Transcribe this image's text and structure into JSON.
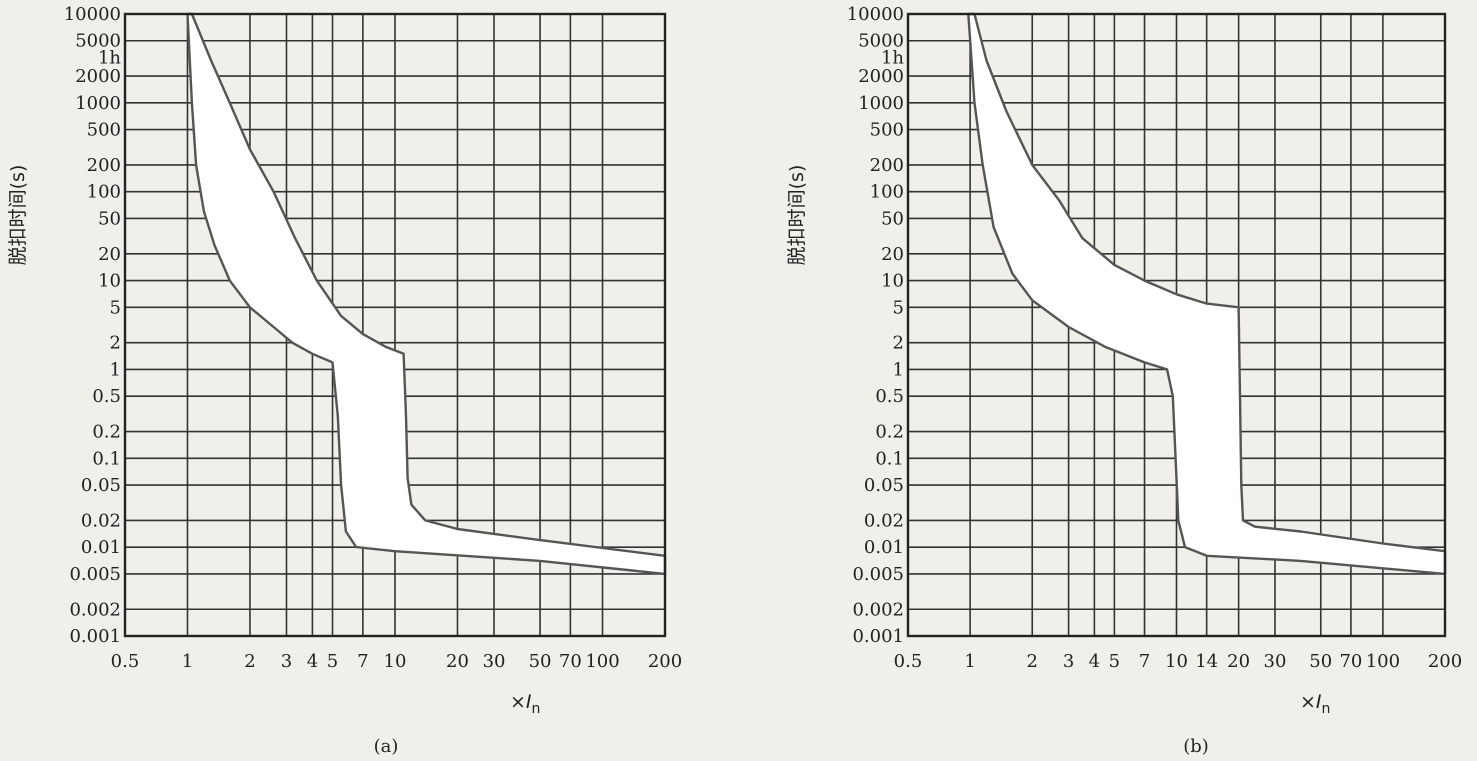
{
  "chart_data": [
    {
      "type": "area",
      "panel_label": "(a)",
      "ylabel": "脱扣时间(s)",
      "xlabel_prefix": "×",
      "xlabel_var": "I",
      "xlabel_sub": "n",
      "x_scale": "log",
      "y_scale": "log",
      "xlim": [
        0.5,
        200
      ],
      "ylim": [
        0.001,
        10000
      ],
      "grid": true,
      "y_ticks": [
        "10000",
        "5000",
        "1h",
        "2000",
        "1000",
        "500",
        "200",
        "100",
        "50",
        "20",
        "10",
        "5",
        "2",
        "1",
        "0.5",
        "0.2",
        "0.1",
        "0.05",
        "0.02",
        "0.01",
        "0.005",
        "0.002",
        "0.001"
      ],
      "x_ticks": [
        "0.5",
        "1",
        "2",
        "3",
        "4",
        "5",
        "7",
        "10",
        "20",
        "30",
        "50",
        "70",
        "100",
        "200"
      ],
      "series": [
        {
          "role": "upper-bound",
          "x": [
            1.05,
            1.3,
            1.6,
            2.0,
            2.6,
            3.3,
            4.2,
            5.5,
            7.0,
            9.0,
            11.0,
            11.3,
            11.5,
            12.0,
            14.0,
            20.0,
            50.0,
            200.0
          ],
          "y": [
            10000,
            3000,
            1000,
            300,
            100,
            30,
            10,
            4,
            2.5,
            1.8,
            1.5,
            0.3,
            0.06,
            0.03,
            0.02,
            0.016,
            0.012,
            0.008
          ]
        },
        {
          "role": "lower-bound",
          "x": [
            1.0,
            1.05,
            1.1,
            1.2,
            1.35,
            1.6,
            2.0,
            2.6,
            3.2,
            4.0,
            5.0,
            5.3,
            5.5,
            5.8,
            6.5,
            10.0,
            50.0,
            200.0
          ],
          "y": [
            10000,
            1000,
            200,
            60,
            25,
            10,
            5,
            3,
            2,
            1.5,
            1.2,
            0.3,
            0.05,
            0.015,
            0.01,
            0.009,
            0.007,
            0.005
          ]
        }
      ]
    },
    {
      "type": "area",
      "panel_label": "(b)",
      "ylabel": "脱扣时间(s)",
      "xlabel_prefix": "×",
      "xlabel_var": "I",
      "xlabel_sub": "n",
      "x_scale": "log",
      "y_scale": "log",
      "xlim": [
        0.5,
        200
      ],
      "ylim": [
        0.001,
        10000
      ],
      "grid": true,
      "y_ticks": [
        "10000",
        "5000",
        "1h",
        "2000",
        "1000",
        "500",
        "200",
        "100",
        "50",
        "20",
        "10",
        "5",
        "2",
        "1",
        "0.5",
        "0.2",
        "0.1",
        "0.05",
        "0.02",
        "0.01",
        "0.005",
        "0.002",
        "0.001"
      ],
      "x_ticks": [
        "0.5",
        "1",
        "2",
        "3",
        "4",
        "5",
        "7",
        "10",
        "14",
        "20",
        "30",
        "50",
        "70",
        "100",
        "200"
      ],
      "series": [
        {
          "role": "upper-bound",
          "x": [
            1.05,
            1.2,
            1.5,
            2.0,
            2.7,
            3.5,
            5.0,
            7.0,
            10.0,
            14.0,
            20.0,
            20.3,
            20.6,
            21.0,
            24.0,
            40.0,
            100.0,
            200.0
          ],
          "y": [
            10000,
            3000,
            800,
            200,
            80,
            30,
            15,
            10,
            7,
            5.5,
            5,
            0.5,
            0.05,
            0.02,
            0.017,
            0.015,
            0.011,
            0.009
          ]
        },
        {
          "role": "lower-bound",
          "x": [
            0.98,
            1.05,
            1.15,
            1.3,
            1.6,
            2.0,
            3.0,
            4.5,
            7.0,
            9.0,
            9.6,
            9.9,
            10.2,
            11.0,
            14.0,
            40.0,
            200.0
          ],
          "y": [
            10000,
            1000,
            200,
            40,
            12,
            6,
            3,
            1.8,
            1.2,
            1.0,
            0.5,
            0.1,
            0.02,
            0.01,
            0.008,
            0.007,
            0.005
          ]
        }
      ]
    }
  ]
}
